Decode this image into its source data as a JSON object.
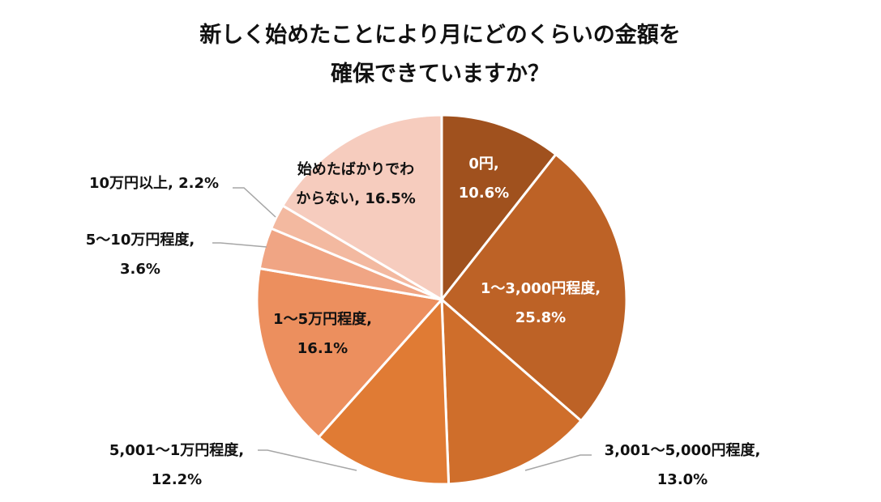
{
  "chart_data": {
    "type": "pie",
    "title_lines": [
      "新しく始めたことにより月にどのくらいの金額を",
      "確保できていますか？"
    ],
    "slices": [
      {
        "label_lines": [
          "0円,",
          "10.6%"
        ],
        "value": 10.6,
        "color": "#A0511E",
        "text_color": "#ffffff"
      },
      {
        "label_lines": [
          "1～3,000円程度,",
          "25.8%"
        ],
        "value": 25.8,
        "color": "#BD6226",
        "text_color": "#ffffff"
      },
      {
        "label_lines": [
          "3,001～5,000円程度,",
          "13.0%"
        ],
        "value": 13.0,
        "color": "#CF6E2B",
        "text_color": "#111111"
      },
      {
        "label_lines": [
          "5,001～1万円程度,",
          "12.2%"
        ],
        "value": 12.2,
        "color": "#E07B34",
        "text_color": "#111111"
      },
      {
        "label_lines": [
          "1～5万円程度,",
          "16.1%"
        ],
        "value": 16.1,
        "color": "#EC8F5E",
        "text_color": "#111111"
      },
      {
        "label_lines": [
          "5～10万円程度,",
          "3.6%"
        ],
        "value": 3.6,
        "color": "#F0A584",
        "text_color": "#111111"
      },
      {
        "label_lines": [
          "10万円以上, 2.2%"
        ],
        "value": 2.2,
        "color": "#F3B9A0",
        "text_color": "#111111"
      },
      {
        "label_lines": [
          "始めたばかりでわ",
          "からない, 16.5%"
        ],
        "value": 16.5,
        "color": "#F6CCBE",
        "text_color": "#111111"
      }
    ]
  }
}
